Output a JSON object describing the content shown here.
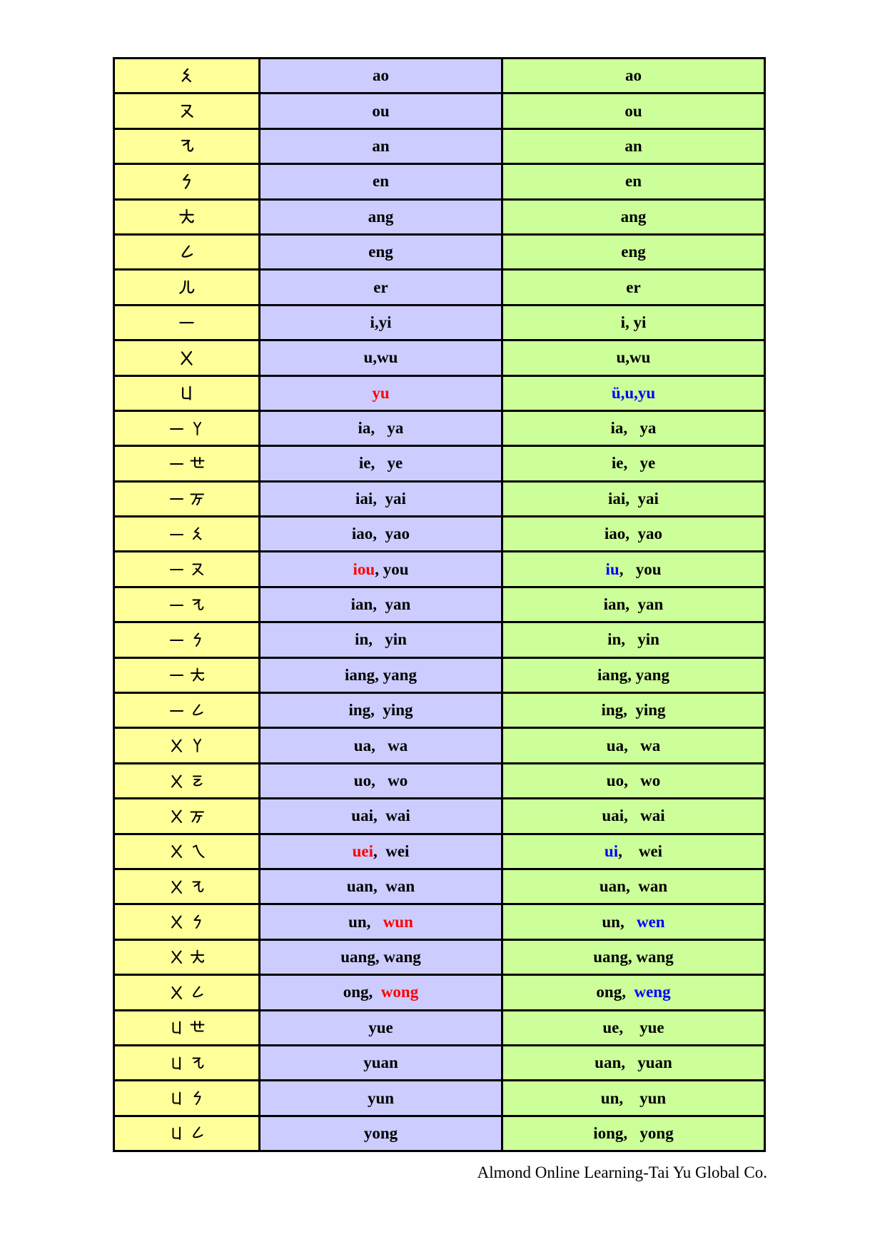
{
  "colors": {
    "zhuyin_column_bg": "#FFFF99",
    "pinyin_column_1_bg": "#CCCCFF",
    "pinyin_column_2_bg": "#CCFF99",
    "border": "#000000",
    "text": "#000000",
    "highlight_red": "#FF0000",
    "highlight_blue": "#0000FF",
    "page_bg": "#FFFFFF"
  },
  "table": {
    "rows": [
      {
        "zhuyin": "ㄠ",
        "col2": [
          [
            "ao",
            "k"
          ]
        ],
        "col3": [
          [
            "ao",
            "k"
          ]
        ]
      },
      {
        "zhuyin": "ㄡ",
        "col2": [
          [
            "ou",
            "k"
          ]
        ],
        "col3": [
          [
            "ou",
            "k"
          ]
        ]
      },
      {
        "zhuyin": "ㄢ",
        "col2": [
          [
            "an",
            "k"
          ]
        ],
        "col3": [
          [
            "an",
            "k"
          ]
        ]
      },
      {
        "zhuyin": "ㄣ",
        "col2": [
          [
            "en",
            "k"
          ]
        ],
        "col3": [
          [
            "en",
            "k"
          ]
        ]
      },
      {
        "zhuyin": "ㄤ",
        "col2": [
          [
            "ang",
            "k"
          ]
        ],
        "col3": [
          [
            "ang",
            "k"
          ]
        ]
      },
      {
        "zhuyin": "ㄥ",
        "col2": [
          [
            "eng",
            "k"
          ]
        ],
        "col3": [
          [
            "eng",
            "k"
          ]
        ]
      },
      {
        "zhuyin": "ㄦ",
        "col2": [
          [
            "er",
            "k"
          ]
        ],
        "col3": [
          [
            "er",
            "k"
          ]
        ]
      },
      {
        "zhuyin": "ㄧ",
        "col2": [
          [
            "i,yi",
            "k"
          ]
        ],
        "col3": [
          [
            "i, yi",
            "k"
          ]
        ]
      },
      {
        "zhuyin": "ㄨ",
        "col2": [
          [
            "u,wu",
            "k"
          ]
        ],
        "col3": [
          [
            "u,wu",
            "k"
          ]
        ]
      },
      {
        "zhuyin": "ㄩ",
        "col2": [
          [
            "yu",
            "r"
          ]
        ],
        "col3": [
          [
            "ü,u,yu",
            "b"
          ]
        ]
      },
      {
        "zhuyin": "ㄧㄚ",
        "col2": [
          [
            "ia,   ya",
            "k"
          ]
        ],
        "col3": [
          [
            "ia,   ya",
            "k"
          ]
        ]
      },
      {
        "zhuyin": "ㄧㄝ",
        "col2": [
          [
            "ie,   ye",
            "k"
          ]
        ],
        "col3": [
          [
            "ie,   ye",
            "k"
          ]
        ]
      },
      {
        "zhuyin": "ㄧㄞ",
        "col2": [
          [
            "iai,  yai",
            "k"
          ]
        ],
        "col3": [
          [
            "iai,  yai",
            "k"
          ]
        ]
      },
      {
        "zhuyin": "ㄧㄠ",
        "col2": [
          [
            "iao,  yao",
            "k"
          ]
        ],
        "col3": [
          [
            "iao,  yao",
            "k"
          ]
        ]
      },
      {
        "zhuyin": "ㄧㄡ",
        "col2": [
          [
            "iou",
            "r"
          ],
          [
            ", you",
            "k"
          ]
        ],
        "col3": [
          [
            "iu",
            "b"
          ],
          [
            ",   you",
            "k"
          ]
        ]
      },
      {
        "zhuyin": "ㄧㄢ",
        "col2": [
          [
            "ian,  yan",
            "k"
          ]
        ],
        "col3": [
          [
            "ian,  yan",
            "k"
          ]
        ]
      },
      {
        "zhuyin": "ㄧㄣ",
        "col2": [
          [
            "in,   yin",
            "k"
          ]
        ],
        "col3": [
          [
            "in,   yin",
            "k"
          ]
        ]
      },
      {
        "zhuyin": "ㄧㄤ",
        "col2": [
          [
            "iang, yang",
            "k"
          ]
        ],
        "col3": [
          [
            "iang, yang",
            "k"
          ]
        ]
      },
      {
        "zhuyin": "ㄧㄥ",
        "col2": [
          [
            "ing,  ying",
            "k"
          ]
        ],
        "col3": [
          [
            "ing,  ying",
            "k"
          ]
        ]
      },
      {
        "zhuyin": "ㄨㄚ",
        "col2": [
          [
            "ua,   wa",
            "k"
          ]
        ],
        "col3": [
          [
            "ua,   wa",
            "k"
          ]
        ]
      },
      {
        "zhuyin": "ㄨㄛ",
        "col2": [
          [
            "uo,   wo",
            "k"
          ]
        ],
        "col3": [
          [
            "uo,   wo",
            "k"
          ]
        ]
      },
      {
        "zhuyin": "ㄨㄞ",
        "col2": [
          [
            "uai,  wai",
            "k"
          ]
        ],
        "col3": [
          [
            "uai,   wai",
            "k"
          ]
        ]
      },
      {
        "zhuyin": "ㄨㄟ",
        "col2": [
          [
            "uei",
            "r"
          ],
          [
            ",  wei",
            "k"
          ]
        ],
        "col3": [
          [
            "ui",
            "b"
          ],
          [
            ",    wei",
            "k"
          ]
        ]
      },
      {
        "zhuyin": "ㄨㄢ",
        "col2": [
          [
            "uan,  wan",
            "k"
          ]
        ],
        "col3": [
          [
            "uan,  wan",
            "k"
          ]
        ]
      },
      {
        "zhuyin": "ㄨㄣ",
        "col2": [
          [
            "un,   ",
            "k"
          ],
          [
            "wun",
            "r"
          ]
        ],
        "col3": [
          [
            "un,   ",
            "k"
          ],
          [
            "wen",
            "b"
          ]
        ]
      },
      {
        "zhuyin": "ㄨㄤ",
        "col2": [
          [
            "uang, wang",
            "k"
          ]
        ],
        "col3": [
          [
            "uang, wang",
            "k"
          ]
        ]
      },
      {
        "zhuyin": "ㄨㄥ",
        "col2": [
          [
            "ong,  ",
            "k"
          ],
          [
            "wong",
            "r"
          ]
        ],
        "col3": [
          [
            "ong,  ",
            "k"
          ],
          [
            "weng",
            "b"
          ]
        ]
      },
      {
        "zhuyin": "ㄩㄝ",
        "col2": [
          [
            "yue",
            "k"
          ]
        ],
        "col3": [
          [
            "ue,    yue",
            "k"
          ]
        ]
      },
      {
        "zhuyin": "ㄩㄢ",
        "col2": [
          [
            "yuan",
            "k"
          ]
        ],
        "col3": [
          [
            "uan,   yuan",
            "k"
          ]
        ]
      },
      {
        "zhuyin": "ㄩㄣ",
        "col2": [
          [
            "yun",
            "k"
          ]
        ],
        "col3": [
          [
            "un,    yun",
            "k"
          ]
        ]
      },
      {
        "zhuyin": "ㄩㄥ",
        "col2": [
          [
            "yong",
            "k"
          ]
        ],
        "col3": [
          [
            "iong,   yong",
            "k"
          ]
        ]
      }
    ]
  },
  "footer": {
    "credit": "Almond Online Learning-Tai Yu Global Co."
  }
}
